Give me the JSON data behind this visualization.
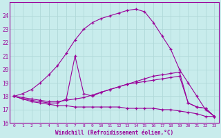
{
  "background_color": "#c8ecec",
  "grid_color": "#b0d8d8",
  "line_color": "#990099",
  "xlabel": "Windchill (Refroidissement éolien,°C)",
  "xlim": [
    -0.5,
    23.5
  ],
  "ylim": [
    16,
    25
  ],
  "yticks": [
    16,
    17,
    18,
    19,
    20,
    21,
    22,
    23,
    24
  ],
  "xticks": [
    0,
    1,
    2,
    3,
    4,
    5,
    6,
    7,
    8,
    9,
    10,
    11,
    12,
    13,
    14,
    15,
    16,
    17,
    18,
    19,
    20,
    21,
    22,
    23
  ],
  "lines": [
    {
      "x": [
        0,
        1,
        2,
        3,
        4,
        5,
        6,
        7,
        8,
        9,
        10,
        11,
        12,
        13,
        14,
        15,
        16,
        17,
        18,
        19,
        20,
        21,
        22,
        23
      ],
      "y": [
        18.0,
        18.2,
        18.5,
        19.0,
        19.6,
        20.3,
        21.2,
        22.2,
        23.0,
        23.5,
        23.8,
        24.0,
        24.2,
        24.4,
        24.5,
        24.3,
        23.5,
        22.5,
        21.5,
        20.0,
        19.0,
        18.0,
        17.0,
        16.5
      ]
    },
    {
      "x": [
        0,
        1,
        2,
        3,
        4,
        5,
        6,
        7,
        8,
        9,
        10,
        11,
        12,
        13,
        14,
        15,
        16,
        17,
        18,
        19,
        20,
        21,
        22,
        23
      ],
      "y": [
        18.0,
        17.8,
        17.7,
        17.6,
        17.5,
        17.5,
        17.8,
        21.0,
        18.2,
        18.0,
        18.3,
        18.5,
        18.7,
        18.9,
        19.0,
        19.1,
        19.2,
        19.3,
        19.4,
        19.5,
        17.5,
        17.2,
        17.1,
        16.5
      ]
    },
    {
      "x": [
        0,
        1,
        2,
        3,
        4,
        5,
        6,
        7,
        8,
        9,
        10,
        11,
        12,
        13,
        14,
        15,
        16,
        17,
        18,
        19,
        20,
        21,
        22,
        23
      ],
      "y": [
        18.0,
        17.9,
        17.8,
        17.7,
        17.6,
        17.6,
        17.7,
        17.8,
        17.9,
        18.1,
        18.3,
        18.5,
        18.7,
        18.9,
        19.1,
        19.3,
        19.5,
        19.6,
        19.7,
        19.8,
        17.5,
        17.2,
        17.1,
        16.5
      ]
    },
    {
      "x": [
        0,
        1,
        2,
        3,
        4,
        5,
        6,
        7,
        8,
        9,
        10,
        11,
        12,
        13,
        14,
        15,
        16,
        17,
        18,
        19,
        20,
        21,
        22,
        23
      ],
      "y": [
        18.0,
        17.8,
        17.6,
        17.5,
        17.4,
        17.3,
        17.3,
        17.2,
        17.2,
        17.2,
        17.2,
        17.2,
        17.2,
        17.1,
        17.1,
        17.1,
        17.1,
        17.0,
        17.0,
        16.9,
        16.8,
        16.7,
        16.5,
        16.5
      ]
    }
  ]
}
